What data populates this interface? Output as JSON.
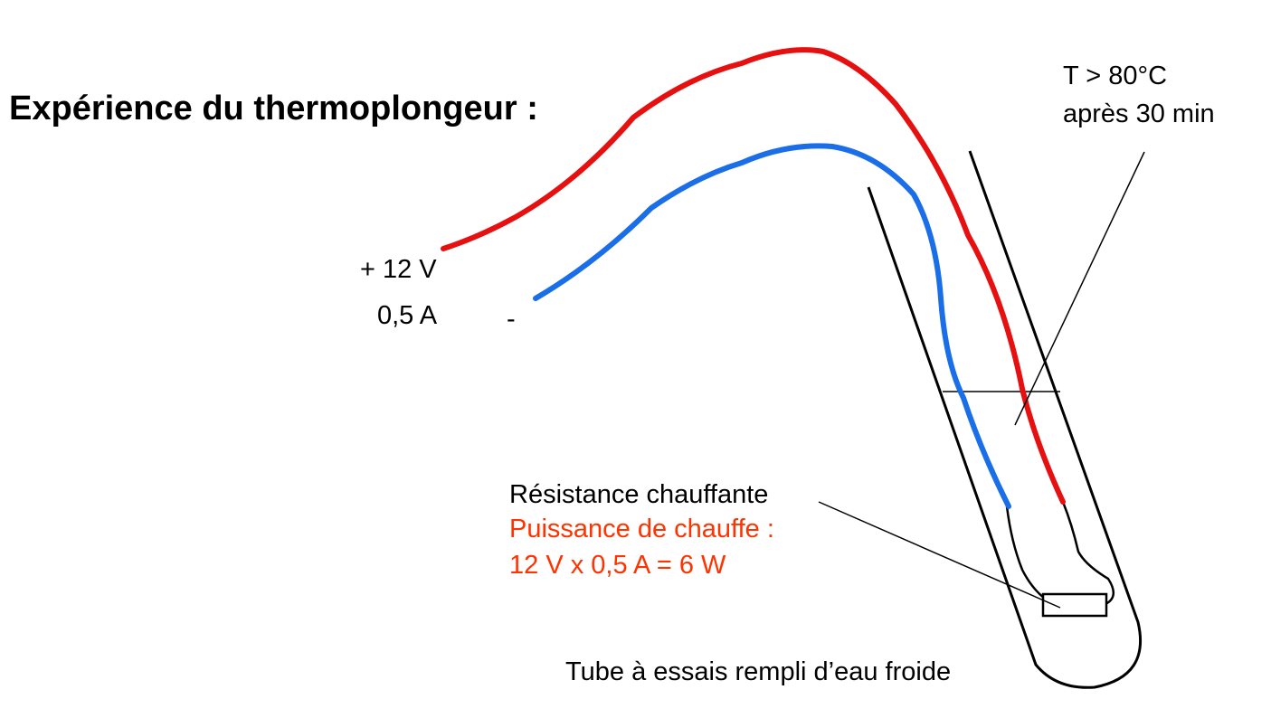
{
  "title": "Expérience du thermoplongeur :",
  "supply": {
    "voltage": "+ 12 V",
    "current": "0,5 A",
    "minus": "-"
  },
  "temperature": {
    "line1": "T > 80°C",
    "line2": "après 30 min"
  },
  "resistor": {
    "label": "Résistance chauffante",
    "power_label": "Puissance de chauffe :",
    "power_formula": "12 V x 0,5 A = 6 W"
  },
  "tube_label": "Tube à essais rempli d’eau froide"
}
